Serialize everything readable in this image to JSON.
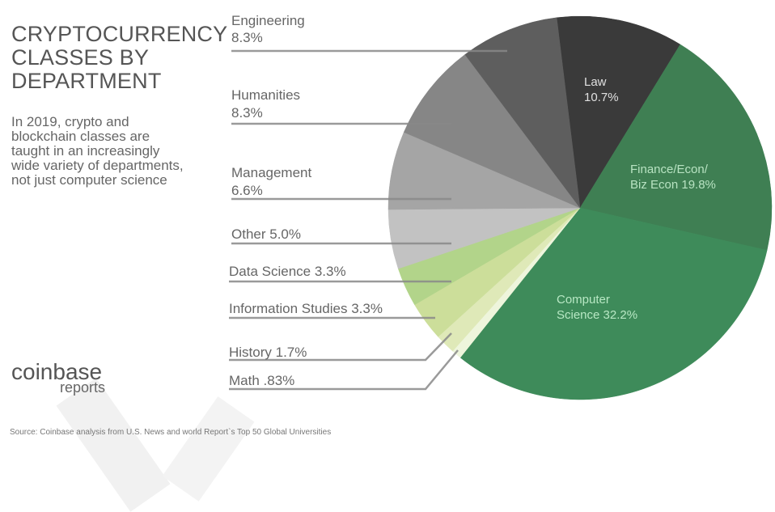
{
  "header": {
    "title_lines": [
      "CRYPTOCURRENCY",
      "CLASSES BY",
      "DEPARTMENT"
    ],
    "subtitle_lines": [
      "In 2019, crypto and",
      "blockchain classes are",
      "taught in an increasingly",
      "wide variety of departments,",
      "not just computer science"
    ]
  },
  "logo": {
    "brand": "coinbase",
    "sub": "reports"
  },
  "source": "Source: Coinbase analysis from U.S. News and world Report`s Top 50 Global Universities",
  "chart_data": {
    "type": "pie",
    "title": "Cryptocurrency Classes by Department",
    "start_angle_deg": -7,
    "direction": "clockwise",
    "slices": [
      {
        "name": "Law",
        "value": 10.7,
        "label": "Law",
        "pct": "10.7%",
        "color": "#3a3a3a",
        "text_color": "#e0e0e0",
        "label_inside": true
      },
      {
        "name": "Finance/Econ/Biz Econ",
        "value": 19.8,
        "label": "Finance/Econ/",
        "label2": "Biz Econ 19.8%",
        "color": "#3f7f53",
        "text_color": "#b8e3c2",
        "label_inside": true
      },
      {
        "name": "Computer Science",
        "value": 32.2,
        "label": "Computer",
        "label2": "Science 32.2%",
        "color": "#3e8b5a",
        "text_color": "#b8e8c4",
        "label_inside": true
      },
      {
        "name": "Math",
        "value": 0.83,
        "label": "Math .83%",
        "color": "#eef5dc",
        "label_inside": false
      },
      {
        "name": "History",
        "value": 1.7,
        "label": "History  1.7%",
        "color": "#dfe9b8",
        "label_inside": false
      },
      {
        "name": "Information Studies",
        "value": 3.3,
        "label": "Information Studies 3.3%",
        "color": "#ccde9a",
        "label_inside": false
      },
      {
        "name": "Data Science",
        "value": 3.3,
        "label": "Data Science 3.3%",
        "color": "#b2d48a",
        "label_inside": false
      },
      {
        "name": "Other",
        "value": 5.0,
        "label": "Other 5.0%",
        "color": "#c2c2c2",
        "label_inside": false
      },
      {
        "name": "Management",
        "value": 6.6,
        "label": "Management",
        "label2": "6.6%",
        "color": "#a5a5a5",
        "label_inside": false
      },
      {
        "name": "Humanities",
        "value": 8.3,
        "label": "Humanities",
        "label2": "8.3%",
        "color": "#868686",
        "label_inside": false
      },
      {
        "name": "Engineering",
        "value": 8.3,
        "label": "Engineering",
        "label2": "8.3%",
        "color": "#5e5e5e",
        "label_inside": false
      }
    ]
  }
}
